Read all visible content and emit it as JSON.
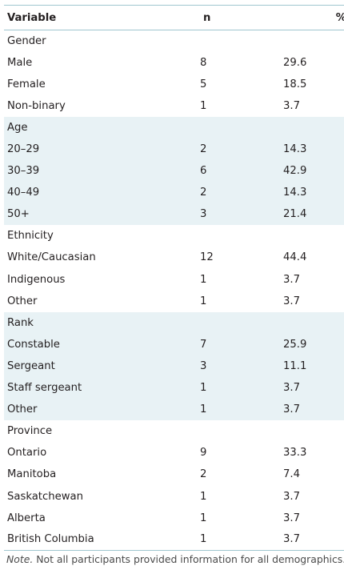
{
  "table": {
    "headers": {
      "variable": "Variable",
      "n": "n",
      "percent": "%"
    },
    "groups": [
      {
        "label": "Gender",
        "shaded": false,
        "rows": [
          {
            "variable": "Male",
            "n": "8",
            "percent": "29.6"
          },
          {
            "variable": "Female",
            "n": "5",
            "percent": "18.5"
          },
          {
            "variable": "Non-binary",
            "n": "1",
            "percent": "3.7"
          }
        ]
      },
      {
        "label": "Age",
        "shaded": true,
        "rows": [
          {
            "variable": "20–29",
            "n": "2",
            "percent": "14.3"
          },
          {
            "variable": "30–39",
            "n": "6",
            "percent": "42.9"
          },
          {
            "variable": "40–49",
            "n": "2",
            "percent": "14.3"
          },
          {
            "variable": "50+",
            "n": "3",
            "percent": "21.4"
          }
        ]
      },
      {
        "label": "Ethnicity",
        "shaded": false,
        "rows": [
          {
            "variable": "White/Caucasian",
            "n": "12",
            "percent": "44.4"
          },
          {
            "variable": "Indigenous",
            "n": "1",
            "percent": "3.7"
          },
          {
            "variable": "Other",
            "n": "1",
            "percent": "3.7"
          }
        ]
      },
      {
        "label": "Rank",
        "shaded": true,
        "rows": [
          {
            "variable": "Constable",
            "n": "7",
            "percent": "25.9"
          },
          {
            "variable": "Sergeant",
            "n": "3",
            "percent": "11.1"
          },
          {
            "variable": "Staff sergeant",
            "n": "1",
            "percent": "3.7"
          },
          {
            "variable": "Other",
            "n": "1",
            "percent": "3.7"
          }
        ]
      },
      {
        "label": "Province",
        "shaded": false,
        "rows": [
          {
            "variable": "Ontario",
            "n": "9",
            "percent": "33.3"
          },
          {
            "variable": "Manitoba",
            "n": "2",
            "percent": "7.4"
          },
          {
            "variable": "Saskatchewan",
            "n": "1",
            "percent": "3.7"
          },
          {
            "variable": "Alberta",
            "n": "1",
            "percent": "3.7"
          },
          {
            "variable": "British Columbia",
            "n": "1",
            "percent": "3.7"
          }
        ]
      }
    ]
  },
  "note": {
    "label": "Note.",
    "text": " Not all participants provided information for all demographics."
  },
  "colors": {
    "shade": "#e8f2f5",
    "rule": "#9fc6cf",
    "text": "#231f20"
  }
}
